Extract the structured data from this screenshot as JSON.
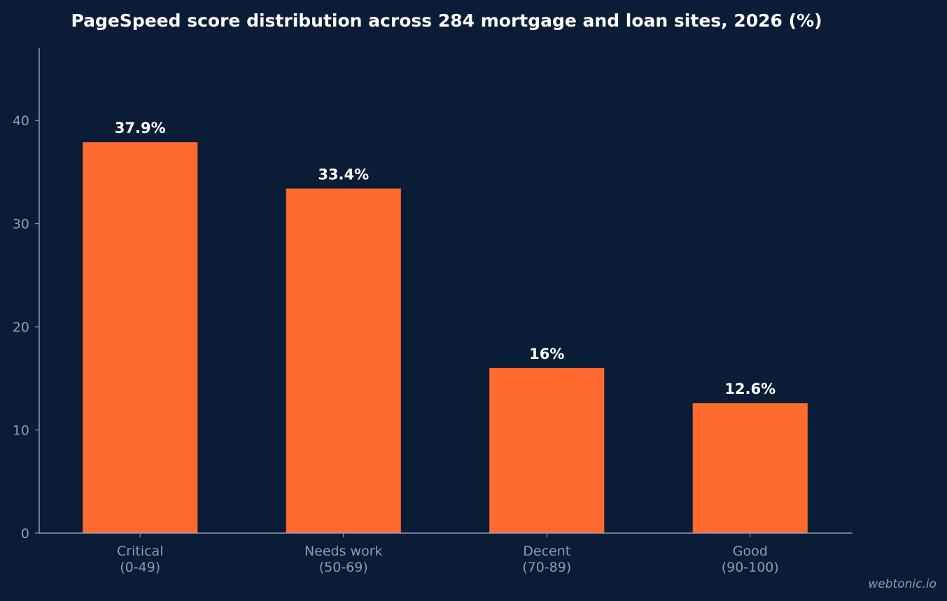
{
  "chart_data": {
    "type": "bar",
    "title": "PageSpeed score distribution across 284 mortgage and loan sites, 2026 (%)",
    "categories": [
      [
        "Critical",
        "(0-49)"
      ],
      [
        "Needs work",
        "(50-69)"
      ],
      [
        "Decent",
        "(70-89)"
      ],
      [
        "Good",
        "(90-100)"
      ]
    ],
    "values": [
      37.9,
      33.4,
      16,
      12.6
    ],
    "value_labels": [
      "37.9%",
      "33.4%",
      "16%",
      "12.6%"
    ],
    "yticks": [
      0,
      10,
      20,
      30,
      40
    ],
    "ylim": [
      0,
      47
    ],
    "xlabel": "",
    "ylabel": "",
    "grid": false,
    "colors": {
      "bar": "#ff6b2e",
      "background": "#0b1c36",
      "axis": "#8e9bb3",
      "text": "#ffffff"
    }
  },
  "watermark": "webtonic.io"
}
